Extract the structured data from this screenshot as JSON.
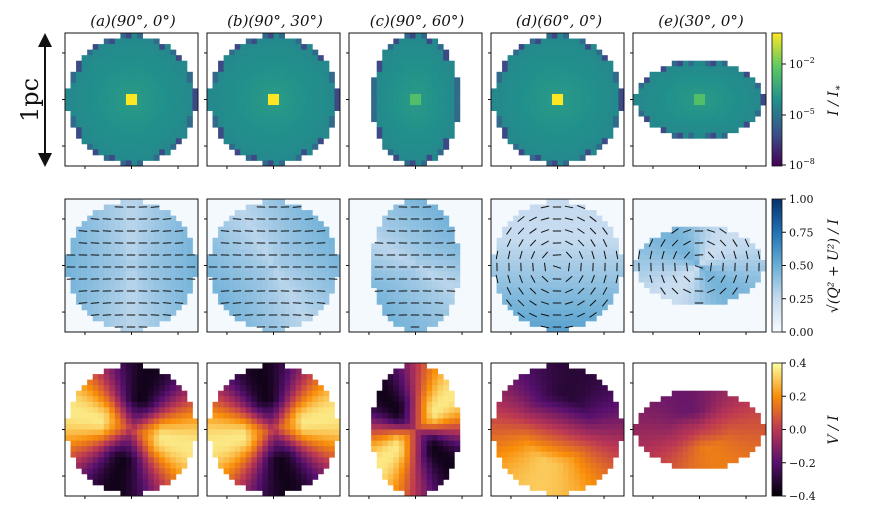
{
  "chart_data": {
    "type": "heatmap",
    "panel_titles": [
      "(a)(90°, 0°)",
      "(b)(90°, 30°)",
      "(c)(90°, 60°)",
      "(d)(60°, 0°)",
      "(e)(30°, 0°)"
    ],
    "panels": [
      {
        "label": "a",
        "inclination_deg": 90,
        "azimuth_deg": 0
      },
      {
        "label": "b",
        "inclination_deg": 90,
        "azimuth_deg": 30
      },
      {
        "label": "c",
        "inclination_deg": 90,
        "azimuth_deg": 60
      },
      {
        "label": "d",
        "inclination_deg": 60,
        "azimuth_deg": 0
      },
      {
        "label": "e",
        "inclination_deg": 30,
        "azimuth_deg": 0
      }
    ],
    "scale_bar_label": "1pc",
    "rows": [
      {
        "quantity": "intensity",
        "colorbar_label": "I/I*",
        "colormap": "viridis",
        "scale": "log",
        "range": [
          1e-08,
          0.1
        ],
        "ticks": [
          "10^-2",
          "10^-5",
          "10^-8"
        ],
        "description_values": {
          "center_peak": 0.1,
          "disk_body": 3e-05,
          "edge_min": 1e-08
        }
      },
      {
        "quantity": "linear_polarization_fraction",
        "colorbar_label": "sqrt(Q^2+U^2)/I",
        "colormap": "blues",
        "scale": "linear",
        "range": [
          0.0,
          1.0
        ],
        "ticks": [
          "1.00",
          "0.75",
          "0.50",
          "0.25",
          "0.00"
        ]
      },
      {
        "quantity": "circular_polarization_fraction",
        "colorbar_label": "V/I",
        "colormap": "inferno",
        "scale": "linear",
        "range": [
          -0.4,
          0.4
        ],
        "ticks": [
          "0.4",
          "0.2",
          "0.0",
          "−0.2",
          "−0.4"
        ]
      }
    ]
  }
}
